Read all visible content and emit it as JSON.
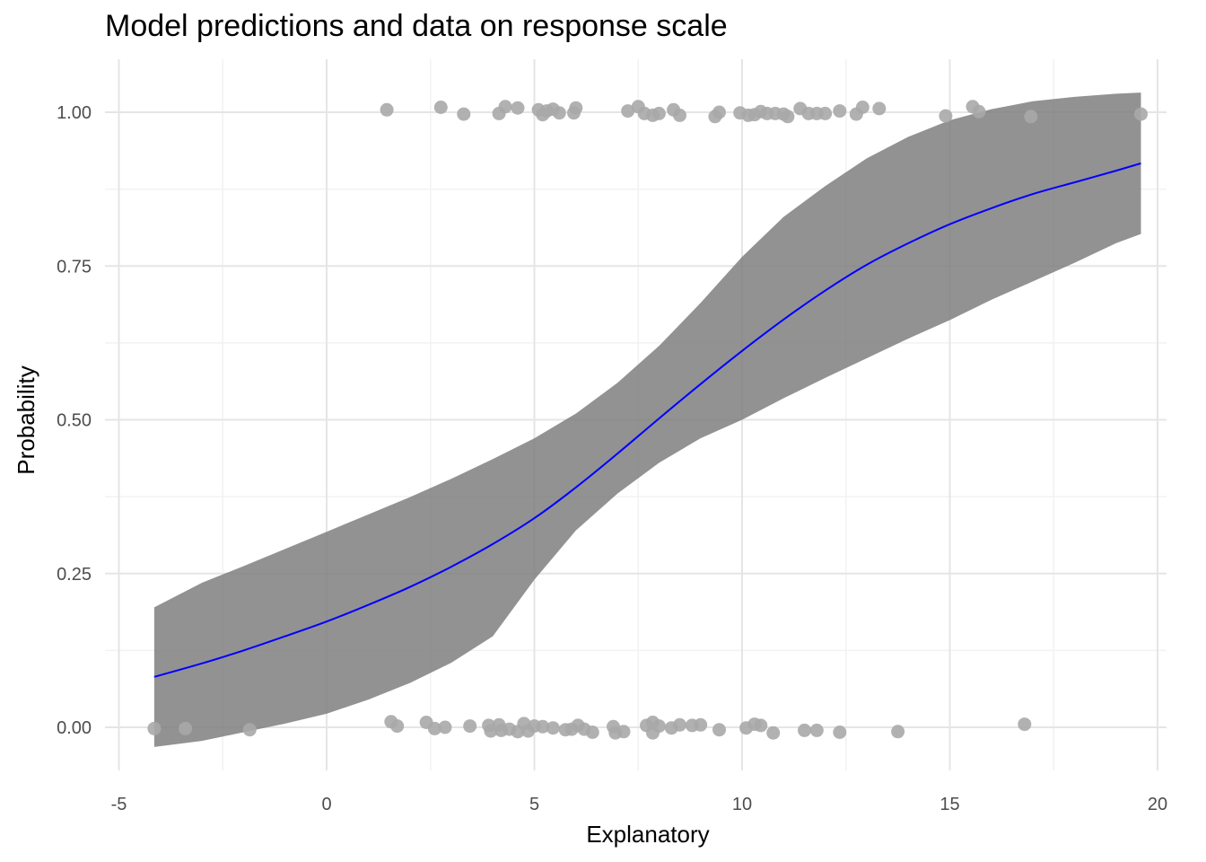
{
  "chart_data": {
    "type": "scatter",
    "title": "Model predictions and data on response scale",
    "xlabel": "Explanatory",
    "ylabel": "Probability",
    "xlim": [
      -5,
      20
    ],
    "ylim": [
      0,
      1
    ],
    "x_ticks": [
      -5,
      0,
      5,
      10,
      15,
      20
    ],
    "x_tick_labels": [
      "-5",
      "0",
      "5",
      "10",
      "15",
      "20"
    ],
    "y_ticks": [
      0,
      0.25,
      0.5,
      0.75,
      1
    ],
    "y_tick_labels": [
      "0.00",
      "0.25",
      "0.50",
      "0.75",
      "1.00"
    ],
    "grid": true,
    "legend": "none",
    "colors": {
      "line": "#0000ff",
      "ribbon": "#7f7f7f",
      "points": "#a9a9a9",
      "grid_major": "#e5e5e5",
      "grid_minor": "#f2f2f2"
    },
    "fitted_curve": {
      "x": [
        -4.15,
        -3,
        -2,
        -1,
        0,
        1,
        2,
        3,
        4,
        5,
        6,
        7,
        8,
        9,
        10,
        11,
        12,
        13,
        14,
        15,
        16,
        17,
        18,
        19,
        19.6
      ],
      "y": [
        0.082,
        0.104,
        0.125,
        0.148,
        0.172,
        0.199,
        0.228,
        0.261,
        0.298,
        0.34,
        0.39,
        0.445,
        0.502,
        0.558,
        0.612,
        0.663,
        0.71,
        0.752,
        0.787,
        0.818,
        0.844,
        0.867,
        0.886,
        0.905,
        0.917
      ]
    },
    "confidence_band": {
      "x": [
        -4.15,
        -3,
        -2,
        -1,
        0,
        1,
        2,
        3,
        4,
        5,
        6,
        7,
        8,
        9,
        10,
        11,
        12,
        13,
        14,
        15,
        16,
        17,
        18,
        19,
        19.6
      ],
      "lower": [
        -0.032,
        -0.022,
        -0.008,
        0.006,
        0.022,
        0.045,
        0.072,
        0.105,
        0.148,
        0.24,
        0.32,
        0.38,
        0.43,
        0.47,
        0.5,
        0.535,
        0.568,
        0.6,
        0.632,
        0.662,
        0.695,
        0.725,
        0.755,
        0.787,
        0.802
      ],
      "upper": [
        0.195,
        0.235,
        0.262,
        0.29,
        0.318,
        0.346,
        0.374,
        0.404,
        0.436,
        0.47,
        0.51,
        0.56,
        0.62,
        0.69,
        0.765,
        0.83,
        0.88,
        0.925,
        0.96,
        0.987,
        1.005,
        1.018,
        1.025,
        1.03,
        1.032
      ]
    },
    "points": [
      {
        "x": 1.45,
        "y": 1.004
      },
      {
        "x": 2.75,
        "y": 1.008
      },
      {
        "x": 3.3,
        "y": 0.997
      },
      {
        "x": 4.15,
        "y": 0.998
      },
      {
        "x": 4.3,
        "y": 1.009
      },
      {
        "x": 4.6,
        "y": 1.007
      },
      {
        "x": 5.1,
        "y": 1.004
      },
      {
        "x": 5.2,
        "y": 0.996
      },
      {
        "x": 5.3,
        "y": 1.002
      },
      {
        "x": 5.45,
        "y": 1.005
      },
      {
        "x": 5.6,
        "y": 0.999
      },
      {
        "x": 5.95,
        "y": 0.999
      },
      {
        "x": 6.0,
        "y": 1.007
      },
      {
        "x": 7.25,
        "y": 1.002
      },
      {
        "x": 7.5,
        "y": 1.009
      },
      {
        "x": 7.65,
        "y": 0.998
      },
      {
        "x": 7.85,
        "y": 0.995
      },
      {
        "x": 8.0,
        "y": 0.998
      },
      {
        "x": 8.35,
        "y": 1.004
      },
      {
        "x": 8.5,
        "y": 0.995
      },
      {
        "x": 9.35,
        "y": 0.993
      },
      {
        "x": 9.45,
        "y": 1.0
      },
      {
        "x": 9.95,
        "y": 0.999
      },
      {
        "x": 10.15,
        "y": 0.995
      },
      {
        "x": 10.3,
        "y": 0.996
      },
      {
        "x": 10.45,
        "y": 1.001
      },
      {
        "x": 10.6,
        "y": 0.998
      },
      {
        "x": 10.8,
        "y": 0.998
      },
      {
        "x": 11.0,
        "y": 0.997
      },
      {
        "x": 11.1,
        "y": 0.993
      },
      {
        "x": 11.4,
        "y": 1.006
      },
      {
        "x": 11.6,
        "y": 0.998
      },
      {
        "x": 11.8,
        "y": 0.998
      },
      {
        "x": 12.0,
        "y": 0.998
      },
      {
        "x": 12.35,
        "y": 1.002
      },
      {
        "x": 12.75,
        "y": 0.997
      },
      {
        "x": 12.9,
        "y": 1.008
      },
      {
        "x": 13.3,
        "y": 1.006
      },
      {
        "x": 14.9,
        "y": 0.994
      },
      {
        "x": 15.55,
        "y": 1.009
      },
      {
        "x": 15.7,
        "y": 1.001
      },
      {
        "x": 16.95,
        "y": 0.993
      },
      {
        "x": 19.6,
        "y": 0.997
      },
      {
        "x": -4.15,
        "y": -0.002
      },
      {
        "x": -3.4,
        "y": -0.002
      },
      {
        "x": -1.85,
        "y": -0.004
      },
      {
        "x": 1.55,
        "y": 0.009
      },
      {
        "x": 1.7,
        "y": 0.002
      },
      {
        "x": 2.4,
        "y": 0.008
      },
      {
        "x": 2.6,
        "y": -0.002
      },
      {
        "x": 2.85,
        "y": 0.0
      },
      {
        "x": 3.45,
        "y": 0.002
      },
      {
        "x": 3.9,
        "y": 0.003
      },
      {
        "x": 3.95,
        "y": -0.006
      },
      {
        "x": 4.15,
        "y": 0.004
      },
      {
        "x": 4.2,
        "y": -0.005
      },
      {
        "x": 4.4,
        "y": -0.003
      },
      {
        "x": 4.6,
        "y": -0.007
      },
      {
        "x": 4.75,
        "y": 0.006
      },
      {
        "x": 4.85,
        "y": -0.006
      },
      {
        "x": 5.0,
        "y": 0.002
      },
      {
        "x": 5.2,
        "y": 0.001
      },
      {
        "x": 5.45,
        "y": -0.001
      },
      {
        "x": 5.75,
        "y": -0.004
      },
      {
        "x": 5.9,
        "y": -0.003
      },
      {
        "x": 6.05,
        "y": 0.003
      },
      {
        "x": 6.2,
        "y": -0.003
      },
      {
        "x": 6.4,
        "y": -0.008
      },
      {
        "x": 6.9,
        "y": 0.001
      },
      {
        "x": 6.95,
        "y": -0.009
      },
      {
        "x": 7.15,
        "y": -0.007
      },
      {
        "x": 7.7,
        "y": 0.003
      },
      {
        "x": 7.85,
        "y": 0.008
      },
      {
        "x": 7.85,
        "y": -0.009
      },
      {
        "x": 8.0,
        "y": 0.002
      },
      {
        "x": 8.3,
        "y": -0.001
      },
      {
        "x": 8.5,
        "y": 0.004
      },
      {
        "x": 8.8,
        "y": 0.003
      },
      {
        "x": 9.0,
        "y": 0.004
      },
      {
        "x": 9.45,
        "y": -0.004
      },
      {
        "x": 10.1,
        "y": -0.001
      },
      {
        "x": 10.3,
        "y": 0.005
      },
      {
        "x": 10.45,
        "y": 0.003
      },
      {
        "x": 10.75,
        "y": -0.009
      },
      {
        "x": 11.5,
        "y": -0.005
      },
      {
        "x": 11.8,
        "y": -0.005
      },
      {
        "x": 12.35,
        "y": -0.008
      },
      {
        "x": 13.75,
        "y": -0.007
      },
      {
        "x": 16.8,
        "y": 0.005
      }
    ]
  }
}
